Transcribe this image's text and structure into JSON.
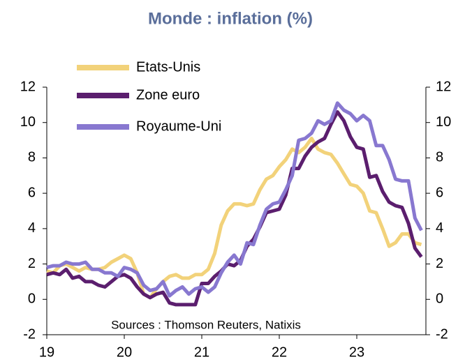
{
  "chart_data": {
    "type": "line",
    "title": "Monde : inflation (%)",
    "annotation": "Sources : Thomson Reuters, Natixis",
    "categories": [
      "19",
      null,
      null,
      null,
      null,
      null,
      null,
      null,
      null,
      null,
      null,
      null,
      "20",
      null,
      null,
      null,
      null,
      null,
      null,
      null,
      null,
      null,
      null,
      null,
      "21",
      null,
      null,
      null,
      null,
      null,
      null,
      null,
      null,
      null,
      null,
      null,
      "22",
      null,
      null,
      null,
      null,
      null,
      null,
      null,
      null,
      null,
      null,
      null,
      "23",
      null,
      null,
      null,
      null,
      null,
      null,
      null,
      null,
      null,
      null
    ],
    "series": [
      {
        "name": "Etats-Unis",
        "color": "#f2d27a",
        "values": [
          1.6,
          1.5,
          1.9,
          2.0,
          1.8,
          1.6,
          1.8,
          1.7,
          1.7,
          1.8,
          2.1,
          2.3,
          2.5,
          2.3,
          1.5,
          0.3,
          0.1,
          0.6,
          1.0,
          1.3,
          1.4,
          1.2,
          1.2,
          1.4,
          1.4,
          1.7,
          2.6,
          4.2,
          5.0,
          5.4,
          5.4,
          5.3,
          5.4,
          6.2,
          6.8,
          7.0,
          7.5,
          7.9,
          8.5,
          8.3,
          8.6,
          9.1,
          8.5,
          8.3,
          8.2,
          7.7,
          7.1,
          6.5,
          6.4,
          6.0,
          5.0,
          4.9,
          4.0,
          3.0,
          3.2,
          3.7,
          3.7,
          3.2,
          3.1
        ]
      },
      {
        "name": "Zone euro",
        "color": "#5b1e6e",
        "values": [
          1.4,
          1.5,
          1.4,
          1.7,
          1.2,
          1.3,
          1.0,
          1.0,
          0.8,
          0.7,
          1.0,
          1.3,
          1.4,
          1.2,
          0.7,
          0.3,
          0.1,
          0.3,
          0.4,
          -0.2,
          -0.3,
          -0.3,
          -0.3,
          -0.3,
          0.9,
          0.9,
          1.3,
          1.6,
          2.0,
          1.9,
          2.2,
          3.0,
          3.4,
          4.1,
          4.9,
          5.0,
          5.1,
          5.9,
          7.4,
          7.4,
          8.1,
          8.6,
          8.9,
          9.1,
          9.9,
          10.6,
          10.1,
          9.2,
          8.6,
          8.5,
          6.9,
          7.0,
          6.1,
          5.5,
          5.3,
          5.2,
          4.3,
          2.9,
          2.4
        ]
      },
      {
        "name": "Royaume-Uni",
        "color": "#8878d0",
        "values": [
          1.8,
          1.9,
          1.9,
          2.1,
          2.0,
          2.0,
          2.1,
          1.7,
          1.7,
          1.5,
          1.5,
          1.3,
          1.8,
          1.7,
          1.5,
          0.8,
          0.5,
          0.6,
          1.0,
          0.2,
          0.5,
          0.7,
          0.3,
          0.6,
          0.7,
          0.4,
          0.7,
          1.5,
          2.1,
          2.5,
          2.0,
          3.2,
          3.1,
          4.2,
          5.1,
          5.4,
          5.5,
          6.2,
          7.0,
          9.0,
          9.1,
          9.4,
          10.1,
          9.9,
          10.1,
          11.1,
          10.7,
          10.5,
          10.1,
          10.4,
          10.1,
          8.7,
          8.7,
          7.9,
          6.8,
          6.7,
          6.7,
          4.6,
          3.9
        ]
      }
    ],
    "ylim": [
      -2,
      12
    ],
    "yticks": [
      -2,
      0,
      2,
      4,
      6,
      8,
      10,
      12
    ],
    "y2lim": [
      -2,
      12
    ],
    "y2ticks": [
      -2,
      0,
      2,
      4,
      6,
      8,
      10,
      12
    ],
    "legend": "upper left",
    "grid": false
  }
}
